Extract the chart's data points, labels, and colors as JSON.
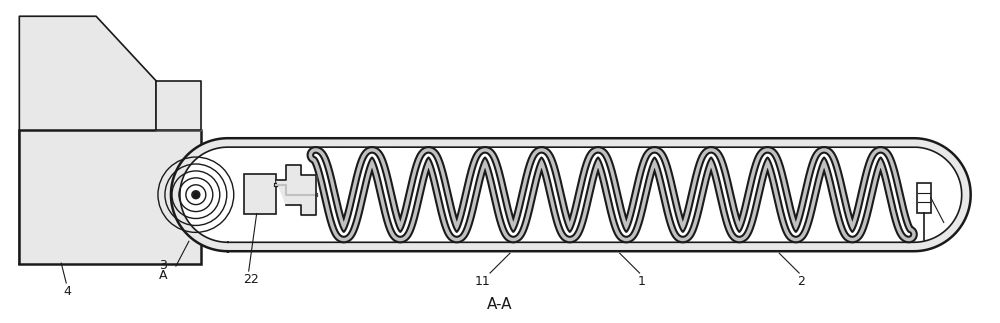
{
  "bg_color": "#ffffff",
  "line_color": "#1a1a1a",
  "gray_fill": "#c0c0c0",
  "light_gray": "#e8e8e8",
  "figure_width": 10.0,
  "figure_height": 3.23,
  "title_text": "A-A",
  "title_fontsize": 11,
  "label_fontsize": 9
}
